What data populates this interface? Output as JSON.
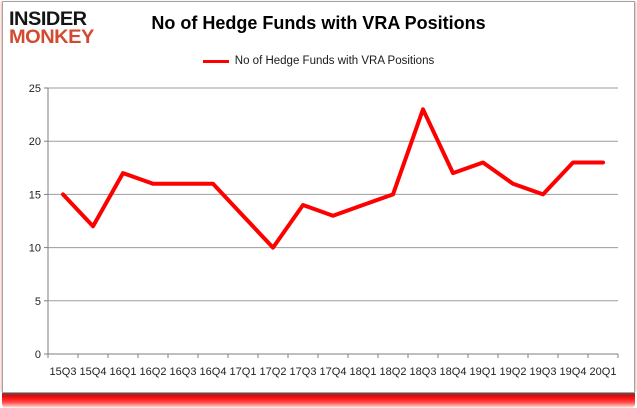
{
  "logo": {
    "line1": "INSIDER",
    "line2": "MONKEY"
  },
  "header": {
    "title": "No of Hedge Funds with VRA Positions"
  },
  "legend": {
    "label": "No of Hedge Funds with VRA Positions",
    "swatch_color": "#fe0000"
  },
  "chart_data": {
    "type": "line",
    "title": "No of Hedge Funds with VRA Positions",
    "series_name": "No of Hedge Funds with VRA Positions",
    "categories": [
      "15Q3",
      "15Q4",
      "16Q1",
      "16Q2",
      "16Q3",
      "16Q4",
      "17Q1",
      "17Q2",
      "17Q3",
      "17Q4",
      "18Q1",
      "18Q2",
      "18Q3",
      "18Q4",
      "19Q1",
      "19Q2",
      "19Q3",
      "19Q4",
      "20Q1"
    ],
    "values": [
      15,
      12,
      17,
      16,
      16,
      16,
      13,
      10,
      14,
      13,
      14,
      15,
      23,
      17,
      18,
      16,
      15,
      18,
      18
    ],
    "xlabel": "",
    "ylabel": "",
    "ylim": [
      0,
      25
    ],
    "y_ticks": [
      0,
      5,
      10,
      15,
      20,
      25
    ],
    "grid": true,
    "legend_position": "top",
    "line_color": "#fe0000",
    "gridline_color": "#9d9d9d",
    "axis_color": "#7f7f7f",
    "tick_label_color": "#1f1f1f"
  },
  "colors": {
    "accent_bar": "#ff1a1a",
    "logo_red": "#d14a31",
    "frame_border": "#a3a3a3"
  }
}
